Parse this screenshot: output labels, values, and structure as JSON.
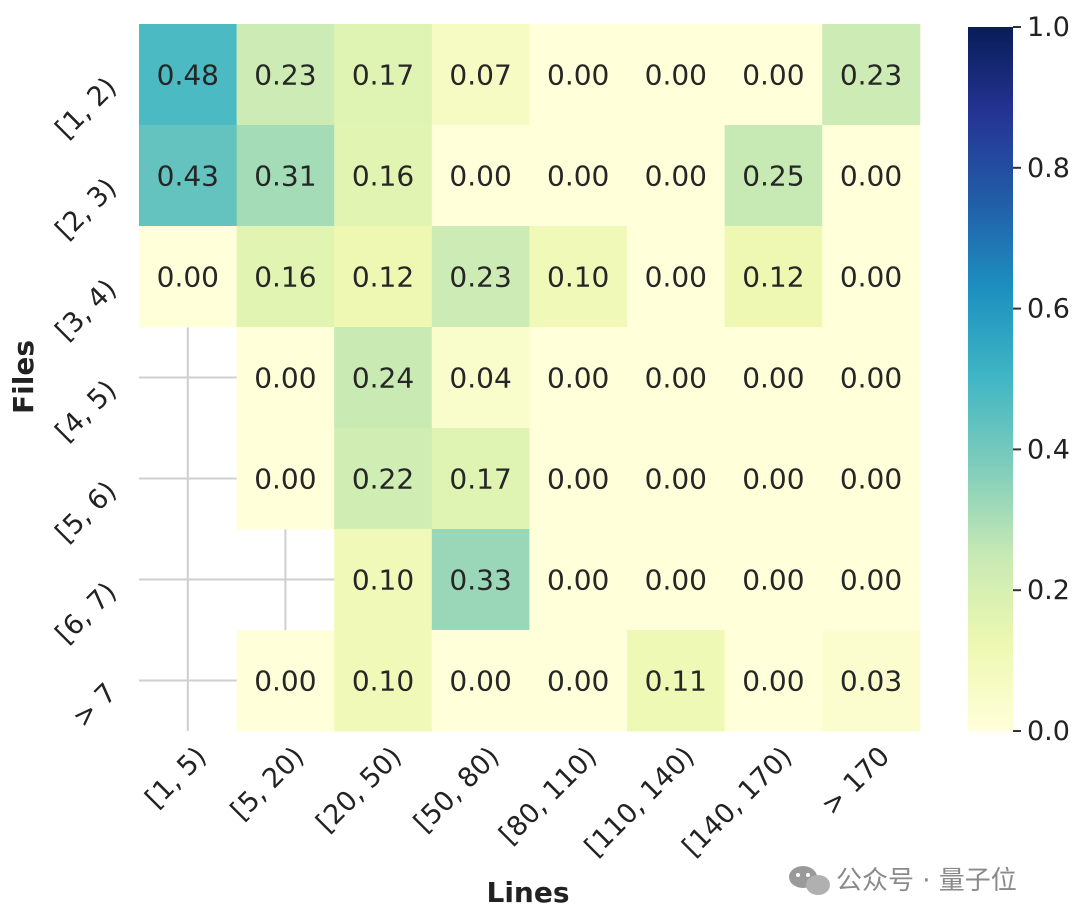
{
  "chart_data": {
    "type": "heatmap",
    "xlabel": "Lines",
    "ylabel": "Files",
    "x_categories": [
      "[1, 5)",
      "[5, 20)",
      "[20, 50)",
      "[50, 80)",
      "[80, 110)",
      "[110, 140)",
      "[140, 170)",
      "> 170"
    ],
    "y_categories": [
      "[1, 2)",
      "[2, 3)",
      "[3, 4)",
      "[4, 5)",
      "[5, 6)",
      "[6, 7)",
      "> 7"
    ],
    "values": [
      [
        0.48,
        0.23,
        0.17,
        0.07,
        0.0,
        0.0,
        0.0,
        0.23
      ],
      [
        0.43,
        0.31,
        0.16,
        0.0,
        0.0,
        0.0,
        0.25,
        0.0
      ],
      [
        0.0,
        0.16,
        0.12,
        0.23,
        0.1,
        0.0,
        0.12,
        0.0
      ],
      [
        null,
        0.0,
        0.24,
        0.04,
        0.0,
        0.0,
        0.0,
        0.0
      ],
      [
        null,
        0.0,
        0.22,
        0.17,
        0.0,
        0.0,
        0.0,
        0.0
      ],
      [
        null,
        null,
        0.1,
        0.33,
        0.0,
        0.0,
        0.0,
        0.0
      ],
      [
        null,
        0.0,
        0.1,
        0.0,
        0.0,
        0.11,
        0.0,
        0.03
      ]
    ],
    "colorbar": {
      "range": [
        0.0,
        1.0
      ],
      "ticks": [
        "0.0",
        "0.2",
        "0.4",
        "0.6",
        "0.8",
        "1.0"
      ],
      "colormap": "YlGnBu"
    },
    "grid": true
  },
  "watermark": {
    "text": "公众号 · 量子位",
    "icon": "wechat-icon"
  }
}
